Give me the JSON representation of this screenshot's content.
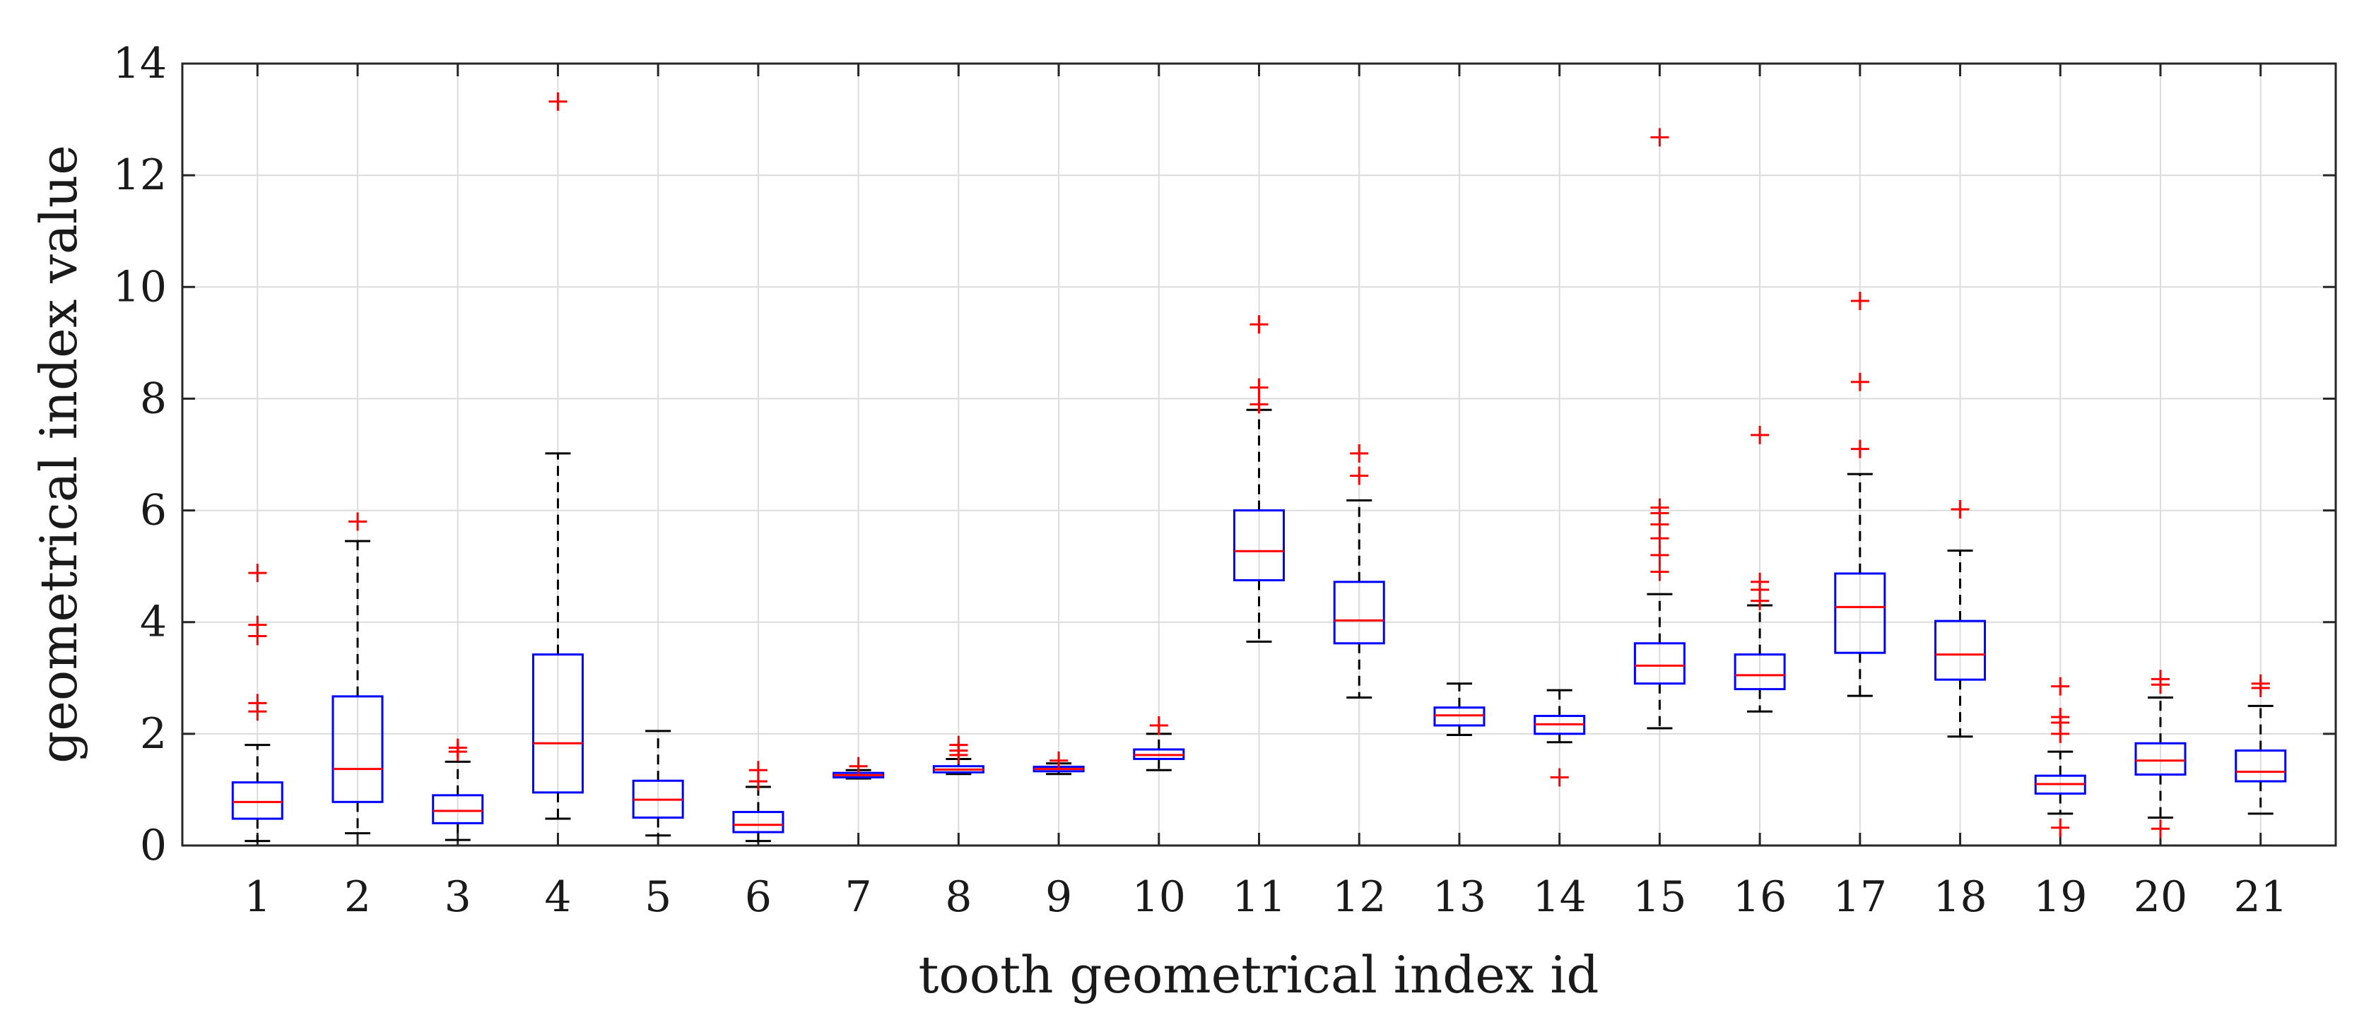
{
  "chart_data": {
    "type": "boxplot",
    "title": "",
    "xlabel": "tooth geometrical index id",
    "ylabel": "geometrical index value",
    "ylim": [
      0,
      14
    ],
    "yticks": [
      0,
      2,
      4,
      6,
      8,
      10,
      12,
      14
    ],
    "grid": true,
    "colors": {
      "box": "#0000ff",
      "median": "#ff0000",
      "whisker": "#000000",
      "outlier": "#ff0000"
    },
    "categories": [
      "1",
      "2",
      "3",
      "4",
      "5",
      "6",
      "7",
      "8",
      "9",
      "10",
      "11",
      "12",
      "13",
      "14",
      "15",
      "16",
      "17",
      "18",
      "19",
      "20",
      "21"
    ],
    "boxes": [
      {
        "id": "1",
        "low": 0.08,
        "q1": 0.48,
        "median": 0.78,
        "q3": 1.13,
        "high": 1.8,
        "outliers": [
          2.4,
          2.55,
          3.75,
          3.95,
          4.88
        ]
      },
      {
        "id": "2",
        "low": 0.22,
        "q1": 0.78,
        "median": 1.37,
        "q3": 2.67,
        "high": 5.45,
        "outliers": [
          5.8
        ]
      },
      {
        "id": "3",
        "low": 0.1,
        "q1": 0.4,
        "median": 0.62,
        "q3": 0.9,
        "high": 1.5,
        "outliers": [
          1.68,
          1.75
        ]
      },
      {
        "id": "4",
        "low": 0.48,
        "q1": 0.95,
        "median": 1.83,
        "q3": 3.42,
        "high": 7.02,
        "outliers": [
          13.32
        ]
      },
      {
        "id": "5",
        "low": 0.18,
        "q1": 0.5,
        "median": 0.82,
        "q3": 1.16,
        "high": 2.05,
        "outliers": []
      },
      {
        "id": "6",
        "low": 0.08,
        "q1": 0.24,
        "median": 0.37,
        "q3": 0.6,
        "high": 1.05,
        "outliers": [
          1.15,
          1.35
        ]
      },
      {
        "id": "7",
        "low": 1.2,
        "q1": 1.22,
        "median": 1.26,
        "q3": 1.3,
        "high": 1.35,
        "outliers": [
          1.42
        ]
      },
      {
        "id": "8",
        "low": 1.28,
        "q1": 1.31,
        "median": 1.36,
        "q3": 1.42,
        "high": 1.55,
        "outliers": [
          1.62,
          1.7,
          1.8
        ]
      },
      {
        "id": "9",
        "low": 1.28,
        "q1": 1.33,
        "median": 1.37,
        "q3": 1.41,
        "high": 1.47,
        "outliers": [
          1.52
        ]
      },
      {
        "id": "10",
        "low": 1.35,
        "q1": 1.55,
        "median": 1.62,
        "q3": 1.72,
        "high": 2.0,
        "outliers": [
          2.15
        ]
      },
      {
        "id": "11",
        "low": 3.65,
        "q1": 4.75,
        "median": 5.27,
        "q3": 6.0,
        "high": 7.8,
        "outliers": [
          7.9,
          8.2,
          9.33
        ]
      },
      {
        "id": "12",
        "low": 2.65,
        "q1": 3.62,
        "median": 4.03,
        "q3": 4.72,
        "high": 6.18,
        "outliers": [
          6.62,
          7.02
        ]
      },
      {
        "id": "13",
        "low": 1.98,
        "q1": 2.15,
        "median": 2.33,
        "q3": 2.47,
        "high": 2.9,
        "outliers": []
      },
      {
        "id": "14",
        "low": 1.85,
        "q1": 2.0,
        "median": 2.17,
        "q3": 2.32,
        "high": 2.78,
        "outliers": [
          1.22
        ]
      },
      {
        "id": "15",
        "low": 2.1,
        "q1": 2.9,
        "median": 3.22,
        "q3": 3.62,
        "high": 4.5,
        "outliers": [
          4.9,
          5.2,
          5.5,
          5.75,
          5.95,
          6.05,
          12.68
        ]
      },
      {
        "id": "16",
        "low": 2.4,
        "q1": 2.8,
        "median": 3.05,
        "q3": 3.42,
        "high": 4.3,
        "outliers": [
          4.38,
          4.58,
          4.72,
          7.35
        ]
      },
      {
        "id": "17",
        "low": 2.68,
        "q1": 3.45,
        "median": 4.27,
        "q3": 4.87,
        "high": 6.65,
        "outliers": [
          7.1,
          8.3,
          9.75
        ]
      },
      {
        "id": "18",
        "low": 1.95,
        "q1": 2.97,
        "median": 3.42,
        "q3": 4.02,
        "high": 5.28,
        "outliers": [
          6.02
        ]
      },
      {
        "id": "19",
        "low": 0.57,
        "q1": 0.93,
        "median": 1.1,
        "q3": 1.25,
        "high": 1.68,
        "outliers": [
          0.32,
          2.0,
          2.2,
          2.3,
          2.85
        ]
      },
      {
        "id": "20",
        "low": 0.5,
        "q1": 1.27,
        "median": 1.52,
        "q3": 1.83,
        "high": 2.65,
        "outliers": [
          0.3,
          2.88,
          2.98
        ]
      },
      {
        "id": "21",
        "low": 0.57,
        "q1": 1.15,
        "median": 1.32,
        "q3": 1.7,
        "high": 2.5,
        "outliers": [
          2.82,
          2.9
        ]
      }
    ]
  }
}
